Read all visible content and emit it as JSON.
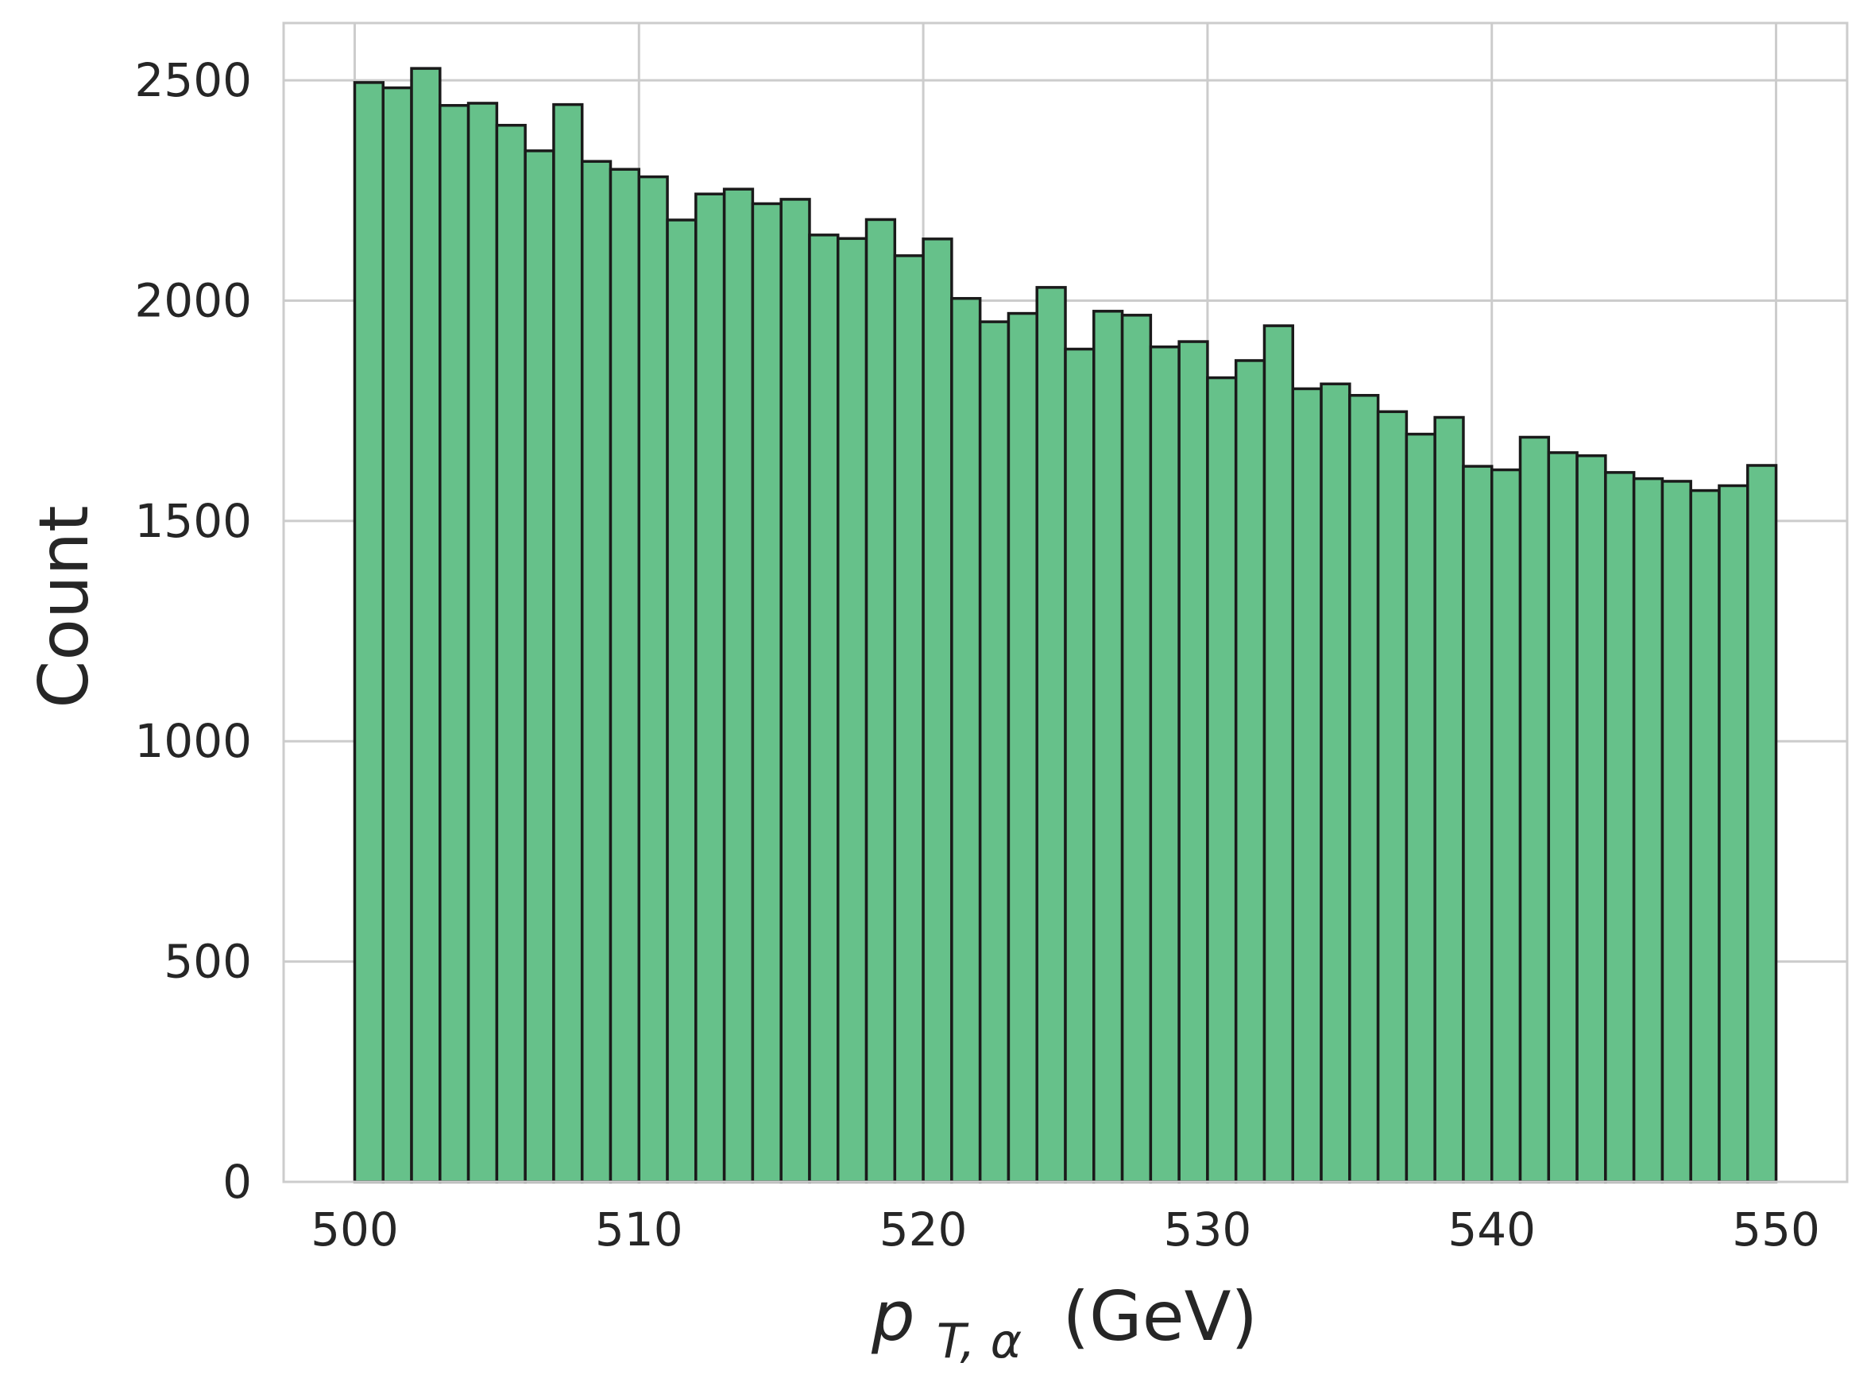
{
  "chart_data": {
    "type": "bar",
    "subtype": "histogram",
    "title": "",
    "xlabel": {
      "symbol": "p",
      "subscript": "T, α",
      "unit": "(GeV)"
    },
    "ylabel": "Count",
    "xlim": [
      497.5,
      552.5
    ],
    "ylim": [
      0,
      2630
    ],
    "x_ticks": [
      "500",
      "510",
      "520",
      "530",
      "540",
      "550"
    ],
    "x_tick_values": [
      500,
      510,
      520,
      530,
      540,
      550
    ],
    "y_ticks": [
      "0",
      "500",
      "1000",
      "1500",
      "2000",
      "2500"
    ],
    "y_tick_values": [
      0,
      500,
      1000,
      1500,
      2000,
      2500
    ],
    "grid": true,
    "colors": {
      "bar_fill": "#66c18a",
      "bar_edge": "#1a1a1a",
      "grid": "#cccccc",
      "frame": "#cccccc",
      "text": "#262626"
    },
    "bin_start": 500,
    "bin_width": 1,
    "values": [
      2495,
      2483,
      2527,
      2443,
      2448,
      2398,
      2340,
      2445,
      2316,
      2298,
      2281,
      2183,
      2242,
      2253,
      2220,
      2230,
      2149,
      2141,
      2184,
      2102,
      2140,
      2005,
      1952,
      1971,
      2030,
      1890,
      1976,
      1967,
      1895,
      1907,
      1825,
      1864,
      1943,
      1800,
      1811,
      1785,
      1748,
      1697,
      1735,
      1624,
      1616,
      1690,
      1655,
      1648,
      1610,
      1596,
      1590,
      1569,
      1580,
      1626
    ]
  }
}
